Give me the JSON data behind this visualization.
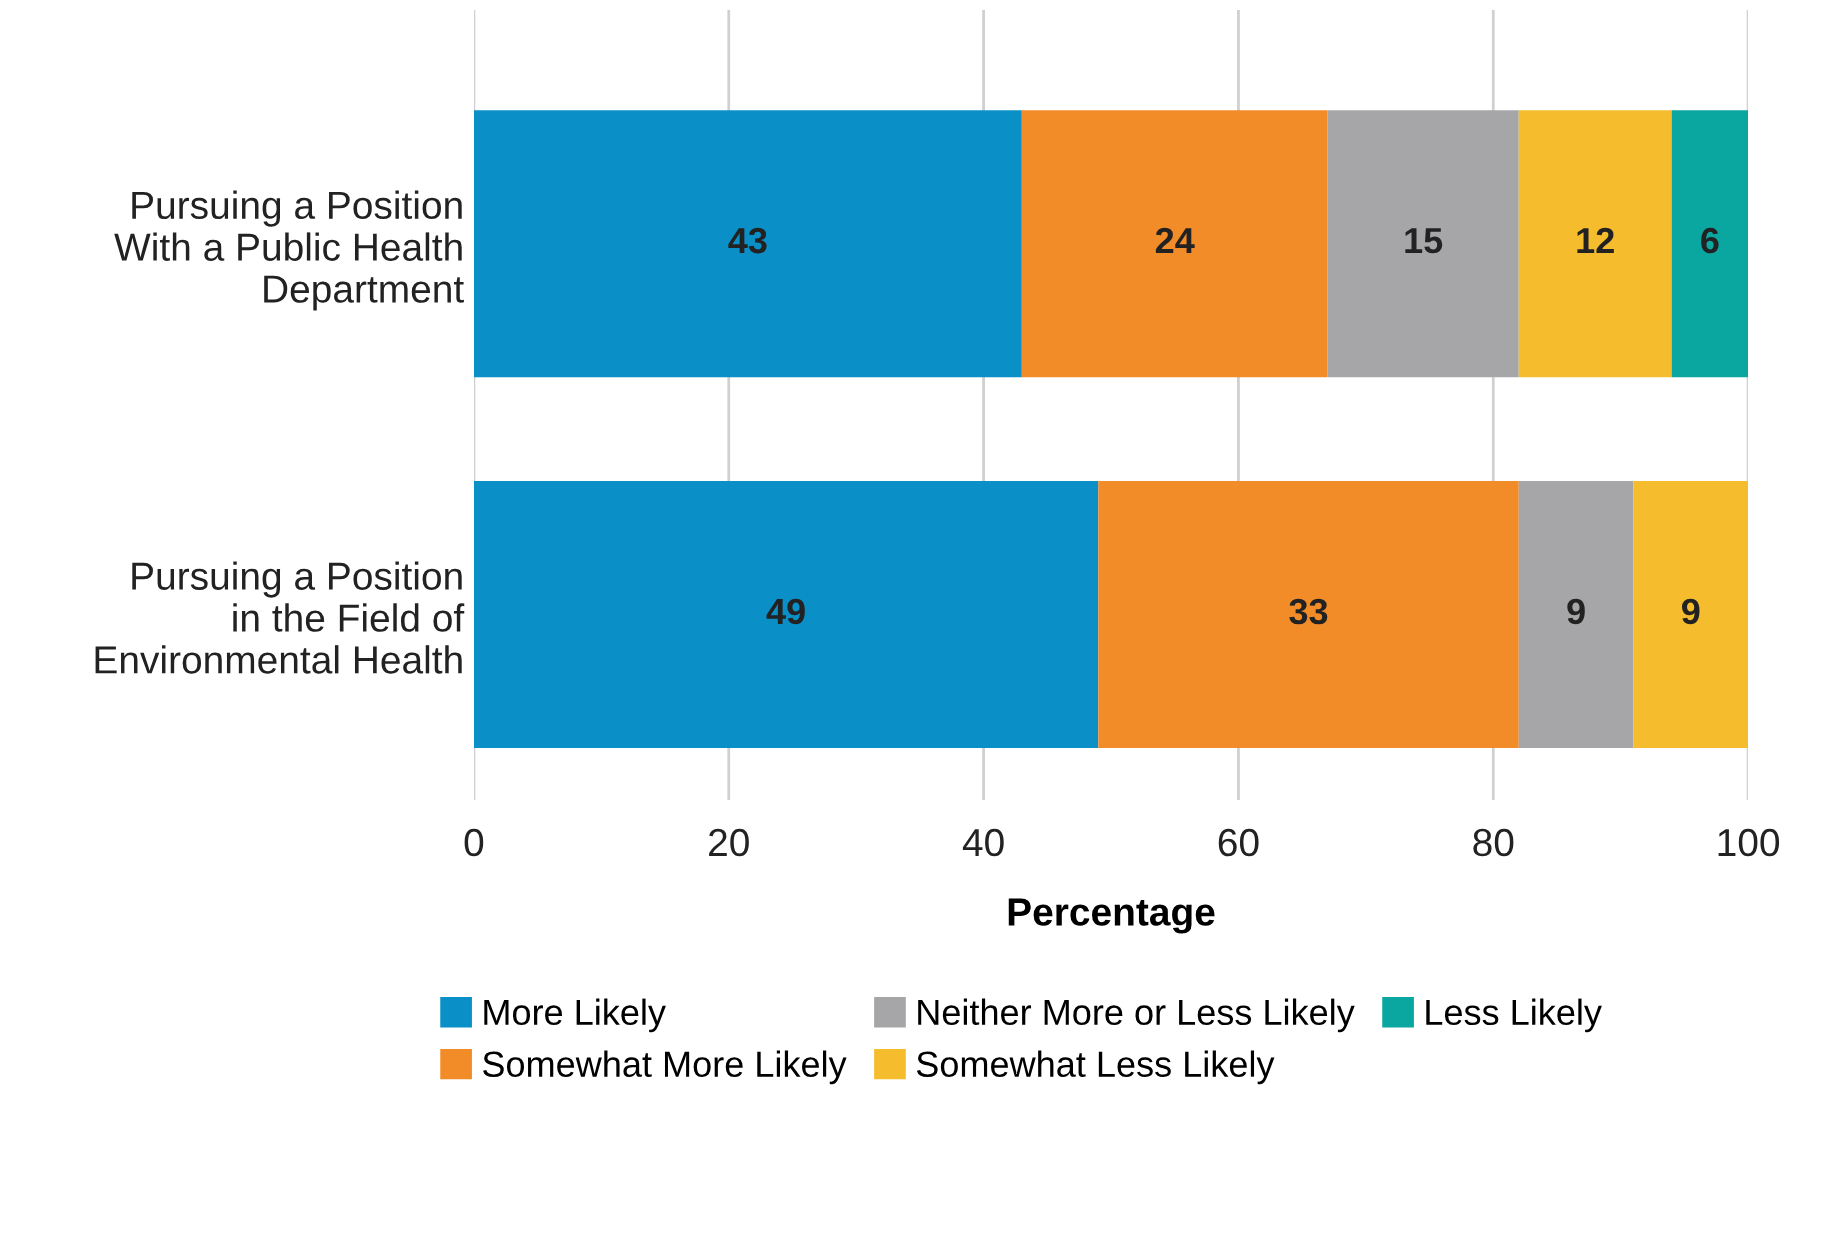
{
  "chart_data": {
    "type": "bar",
    "orientation": "horizontal",
    "stacked": true,
    "xlabel": "Percentage",
    "categories": [
      "Pursuing a Position\nWith a Public Health\nDepartment",
      "Pursuing a Position\nin the Field of\nEnvironmental Health"
    ],
    "series": [
      {
        "name": "More Likely",
        "color": "#0a8fc7",
        "values": [
          43,
          49
        ]
      },
      {
        "name": "Somewhat More Likely",
        "color": "#f28c28",
        "values": [
          24,
          33
        ]
      },
      {
        "name": "Neither More or Less Likely",
        "color": "#a6a6a8",
        "values": [
          15,
          9
        ]
      },
      {
        "name": "Somewhat Less Likely",
        "color": "#f5bc2e",
        "values": [
          12,
          9
        ]
      },
      {
        "name": "Less Likely",
        "color": "#0aa6a0",
        "values": [
          6,
          null
        ]
      }
    ],
    "xlim": [
      0,
      100
    ],
    "xticks": [
      0,
      20,
      40,
      60,
      80,
      100
    ],
    "grid": "x",
    "legend": "bottom",
    "data_labels": true
  }
}
